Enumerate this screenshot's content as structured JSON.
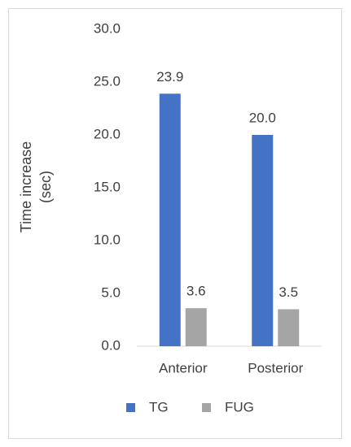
{
  "chart_data": {
    "type": "bar",
    "y_label": "Time increase (sec)",
    "categories": [
      "Anterior",
      "Posterior"
    ],
    "series": [
      {
        "name": "TG",
        "color": "#4472c4",
        "values": [
          23.9,
          20.0
        ],
        "value_labels": [
          "23.9",
          "20.0"
        ]
      },
      {
        "name": "FUG",
        "color": "#a5a5a5",
        "values": [
          3.6,
          3.5
        ],
        "value_labels": [
          "3.6",
          "3.5"
        ]
      }
    ],
    "ylim": [
      0,
      30
    ],
    "yticks": [
      {
        "value": 0,
        "label": "0.0"
      },
      {
        "value": 5,
        "label": "5.0"
      },
      {
        "value": 10,
        "label": "10.0"
      },
      {
        "value": 15,
        "label": "15.0"
      },
      {
        "value": 20,
        "label": "20.0"
      },
      {
        "value": 25,
        "label": "25.0"
      },
      {
        "value": 30,
        "label": "30.0"
      }
    ],
    "grid": false,
    "legend": "bottom"
  }
}
